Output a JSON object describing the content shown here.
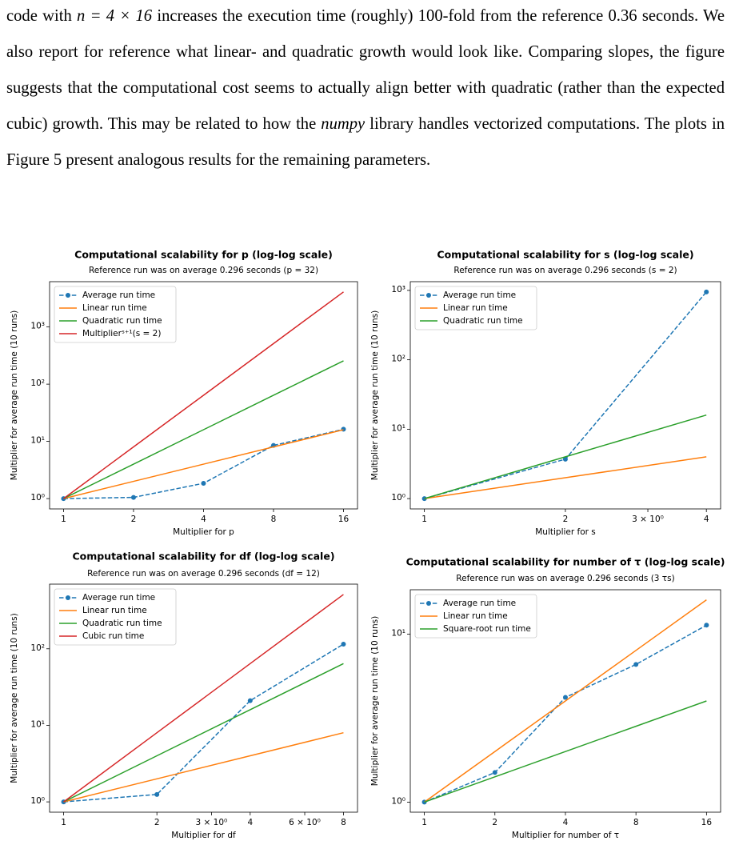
{
  "paragraph": [
    "code with ",
    "n = 4 × 16",
    " increases the execution time (roughly) 100-fold from the reference 0.36 seconds. We also report for reference what linear- and quadratic growth would look like. Comparing slopes, the figure suggests that the computational cost seems to actually align better with quadratic (rather than the expected cubic) growth. This may be related to how the ",
    "numpy",
    " library handles vectorized computations. The plots in Figure 5 present analogous results for the remaining parameters."
  ],
  "chart_data": [
    {
      "type": "line",
      "title": "Computational scalability for p (log-log scale)",
      "subtitle": "Reference run was on average 0.296 seconds (p = 32)",
      "x_label": "Multiplier for p",
      "y_label": "Multiplier for average run time (10 runs)",
      "xscale": "log",
      "yscale": "log",
      "x": [
        1,
        2,
        4,
        8,
        16
      ],
      "series": [
        {
          "name": "Average run time",
          "color": "#1f77b4",
          "linestyle": "--",
          "marker": "o",
          "values": [
            1.0,
            1.05,
            1.85,
            8.5,
            16.3
          ]
        },
        {
          "name": "Linear run time",
          "color": "#ff7f0e",
          "linestyle": "-",
          "values": [
            1,
            2,
            4,
            8,
            16
          ]
        },
        {
          "name": "Quadratic run time",
          "color": "#2ca02c",
          "linestyle": "-",
          "values": [
            1,
            4,
            16,
            64,
            256
          ]
        },
        {
          "name": "Multiplierˢ⁺¹(s = 2)",
          "color": "#d62728",
          "linestyle": "-",
          "values": [
            1,
            8,
            64,
            512,
            4096
          ]
        }
      ],
      "xlim": [
        0.871,
        18.38
      ],
      "xticks": [
        1,
        2,
        4,
        8,
        16
      ],
      "ylim": [
        0.66,
        6190
      ],
      "yticks": [
        {
          "value": 1,
          "label": "10⁰"
        },
        {
          "value": 10,
          "label": "10¹"
        },
        {
          "value": 100,
          "label": "10²"
        },
        {
          "value": 1000,
          "label": "10³"
        }
      ],
      "legend": "upper left"
    },
    {
      "type": "line",
      "title": "Computational scalability for s (log-log scale)",
      "subtitle": "Reference run was on average 0.296 seconds (s = 2)",
      "x_label": "Multiplier for s",
      "y_label": "Multiplier for average run time (10 runs)",
      "xscale": "log",
      "yscale": "log",
      "x": [
        1,
        2,
        4
      ],
      "series": [
        {
          "name": "Average run time",
          "color": "#1f77b4",
          "linestyle": "--",
          "marker": "o",
          "values": [
            1.0,
            3.7,
            950
          ]
        },
        {
          "name": "Linear run time",
          "color": "#ff7f0e",
          "linestyle": "-",
          "values": [
            1,
            2,
            4
          ]
        },
        {
          "name": "Quadratic run time",
          "color": "#2ca02c",
          "linestyle": "-",
          "values": [
            1,
            4,
            16
          ]
        }
      ],
      "xlim": [
        0.933,
        4.29
      ],
      "xticks": [
        1,
        2,
        {
          "value": 3,
          "label": "3 × 10⁰"
        },
        4
      ],
      "ylim": [
        0.71,
        1336
      ],
      "yticks": [
        {
          "value": 1,
          "label": "10⁰"
        },
        {
          "value": 10,
          "label": "10¹"
        },
        {
          "value": 100,
          "label": "10²"
        },
        {
          "value": 1000,
          "label": "10³"
        }
      ],
      "legend": "upper left"
    },
    {
      "type": "line",
      "title": "Computational scalability for df (log-log scale)",
      "subtitle": "Reference run was on average 0.296 seconds (df = 12)",
      "x_label": "Multiplier for df",
      "y_label": "Multiplier for average run time (10 runs)",
      "xscale": "log",
      "yscale": "log",
      "x": [
        1,
        2,
        4,
        8
      ],
      "series": [
        {
          "name": "Average run time",
          "color": "#1f77b4",
          "linestyle": "--",
          "marker": "o",
          "values": [
            1.0,
            1.25,
            21,
            115
          ]
        },
        {
          "name": "Linear run time",
          "color": "#ff7f0e",
          "linestyle": "-",
          "values": [
            1,
            2,
            4,
            8
          ]
        },
        {
          "name": "Quadratic run time",
          "color": "#2ca02c",
          "linestyle": "-",
          "values": [
            1,
            4,
            16,
            64
          ]
        },
        {
          "name": "Cubic run time",
          "color": "#d62728",
          "linestyle": "-",
          "values": [
            1,
            8,
            64,
            512
          ]
        }
      ],
      "xlim": [
        0.901,
        8.88
      ],
      "xticks": [
        1,
        2,
        {
          "value": 3,
          "label": "3 × 10⁰"
        },
        4,
        {
          "value": 6,
          "label": "6 × 10⁰"
        },
        8
      ],
      "ylim": [
        0.733,
        699
      ],
      "yticks": [
        {
          "value": 1,
          "label": "10⁰"
        },
        {
          "value": 10,
          "label": "10¹"
        },
        {
          "value": 100,
          "label": "10²"
        }
      ],
      "legend": "upper left"
    },
    {
      "type": "line",
      "title": "Computational scalability for number of τ (log-log scale)",
      "subtitle": "Reference run was on average 0.296 seconds (3 τs)",
      "x_label": "Multiplier for number of τ",
      "y_label": "Multiplier for average run time (10 runs)",
      "xscale": "log",
      "yscale": "log",
      "x": [
        1,
        2,
        4,
        8,
        16
      ],
      "series": [
        {
          "name": "Average run time",
          "color": "#1f77b4",
          "linestyle": "--",
          "marker": "o",
          "values": [
            1.0,
            1.5,
            4.2,
            6.6,
            11.3
          ]
        },
        {
          "name": "Linear run time",
          "color": "#ff7f0e",
          "linestyle": "-",
          "values": [
            1,
            2,
            4,
            8,
            16
          ]
        },
        {
          "name": "Square-root run time",
          "color": "#2ca02c",
          "linestyle": "-",
          "values": [
            1,
            1.414,
            2,
            2.828,
            4
          ]
        }
      ],
      "xlim": [
        0.871,
        18.38
      ],
      "xticks": [
        1,
        2,
        4,
        8,
        16
      ],
      "ylim": [
        0.871,
        18.37
      ],
      "yticks": [
        {
          "value": 1,
          "label": "10⁰"
        },
        {
          "value": 10,
          "label": "10¹"
        }
      ],
      "legend": "upper left"
    }
  ]
}
